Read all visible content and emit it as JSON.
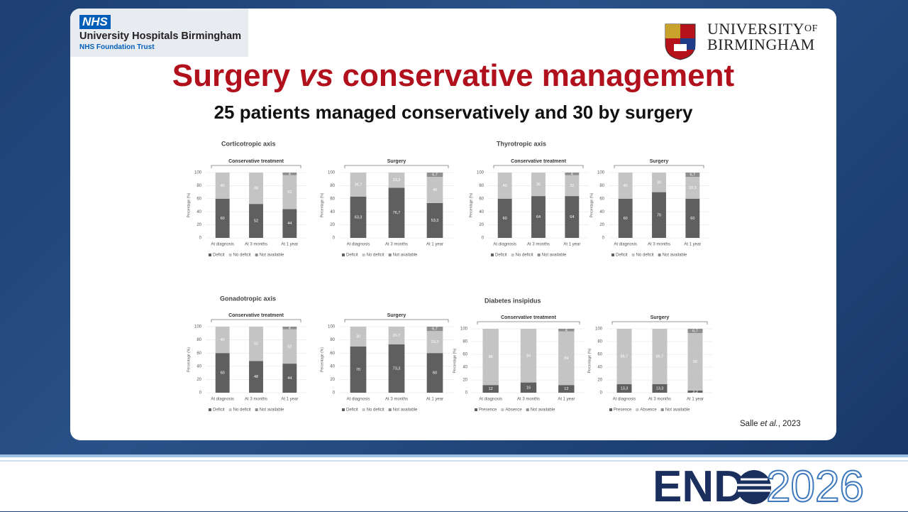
{
  "header": {
    "nhs": "NHS",
    "trust_name": "University Hospitals Birmingham",
    "trust_sub": "NHS Foundation Trust",
    "university": "UNIVERSITY",
    "of": "OF",
    "city": "BIRMINGHAM"
  },
  "slide": {
    "title_parts": [
      "Surgery ",
      "vs",
      " conservative management"
    ],
    "subtitle": "25 patients managed conservatively and 30 by surgery",
    "citation_parts": [
      "Salle ",
      "et al.",
      ", 2023"
    ]
  },
  "footer": {
    "logo_left": "END",
    "logo_right": "2026"
  },
  "chart_data": [
    {
      "type": "bar",
      "stacked": true,
      "group_title": "Corticotropic axis",
      "title": "Conservative treatment",
      "ylabel": "Percentage (%)",
      "categories": [
        "At diagnosis",
        "At 3 months",
        "At 1 year"
      ],
      "ylim": [
        0,
        100
      ],
      "yticks": [
        0,
        20,
        40,
        60,
        80,
        100
      ],
      "series": [
        {
          "name": "Deficit",
          "color": "#5f5f5f",
          "values": [
            60,
            52,
            44
          ]
        },
        {
          "name": "No deficit",
          "color": "#c4c4c4",
          "values": [
            40,
            48,
            52
          ]
        },
        {
          "name": "Not available",
          "color": "#8e8e8e",
          "values": [
            0,
            0,
            4
          ],
          "value_labels": [
            null,
            null,
            "4"
          ]
        }
      ]
    },
    {
      "type": "bar",
      "stacked": true,
      "title": "Surgery",
      "ylabel": "Percentage (%)",
      "categories": [
        "At diagnosis",
        "At 3 months",
        "At 1 year"
      ],
      "ylim": [
        0,
        100
      ],
      "yticks": [
        0,
        20,
        40,
        60,
        80,
        100
      ],
      "series": [
        {
          "name": "Deficit",
          "color": "#5f5f5f",
          "values": [
            63.3,
            76.7,
            53.3
          ],
          "value_labels": [
            "63,3",
            "76,7",
            "53,3"
          ]
        },
        {
          "name": "No deficit",
          "color": "#c4c4c4",
          "values": [
            36.7,
            23.3,
            40
          ],
          "value_labels": [
            "36,7",
            "23,3",
            "40"
          ]
        },
        {
          "name": "Not available",
          "color": "#8e8e8e",
          "values": [
            0,
            0,
            6.7
          ],
          "value_labels": [
            null,
            null,
            "6,7"
          ]
        }
      ]
    },
    {
      "type": "bar",
      "stacked": true,
      "group_title": "Thyrotropic axis",
      "title": "Conservative treatment",
      "ylabel": "Percentage (%)",
      "categories": [
        "At diagnosis",
        "At 3 months",
        "At 1 year"
      ],
      "ylim": [
        0,
        100
      ],
      "yticks": [
        0,
        20,
        40,
        60,
        80,
        100
      ],
      "series": [
        {
          "name": "Deficit",
          "color": "#5f5f5f",
          "values": [
            60,
            64,
            64
          ]
        },
        {
          "name": "No deficit",
          "color": "#c4c4c4",
          "values": [
            40,
            36,
            32
          ]
        },
        {
          "name": "Not available",
          "color": "#8e8e8e",
          "values": [
            0,
            0,
            4
          ],
          "value_labels": [
            null,
            null,
            "4"
          ]
        }
      ]
    },
    {
      "type": "bar",
      "stacked": true,
      "title": "Surgery",
      "ylabel": "Percentage (%)",
      "categories": [
        "At diagnosis",
        "At 3 months",
        "At 1 year"
      ],
      "ylim": [
        0,
        100
      ],
      "yticks": [
        0,
        20,
        40,
        60,
        80,
        100
      ],
      "series": [
        {
          "name": "Deficit",
          "color": "#5f5f5f",
          "values": [
            60,
            70,
            60
          ]
        },
        {
          "name": "No deficit",
          "color": "#c4c4c4",
          "values": [
            40,
            30,
            33.3
          ],
          "value_labels": [
            "40",
            "30",
            "33,3"
          ]
        },
        {
          "name": "Not available",
          "color": "#8e8e8e",
          "values": [
            0,
            0,
            6.7
          ],
          "value_labels": [
            null,
            null,
            "6,7"
          ]
        }
      ]
    },
    {
      "type": "bar",
      "stacked": true,
      "group_title": "Gonadotropic axis",
      "title": "Conservative treatment",
      "ylabel": "Percentage (%)",
      "categories": [
        "At diagnosis",
        "At 3 months",
        "At 1 year"
      ],
      "ylim": [
        0,
        100
      ],
      "yticks": [
        0,
        20,
        40,
        60,
        80,
        100
      ],
      "series": [
        {
          "name": "Deficit",
          "color": "#5f5f5f",
          "values": [
            60,
            48,
            44
          ]
        },
        {
          "name": "No deficit",
          "color": "#c4c4c4",
          "values": [
            40,
            52,
            52
          ]
        },
        {
          "name": "Not available",
          "color": "#8e8e8e",
          "values": [
            0,
            0,
            4
          ],
          "value_labels": [
            null,
            null,
            "4"
          ]
        }
      ]
    },
    {
      "type": "bar",
      "stacked": true,
      "title": "Surgery",
      "ylabel": "Percentage (%)",
      "categories": [
        "At diagnosis",
        "At 3 months",
        "At 1 year"
      ],
      "ylim": [
        0,
        100
      ],
      "yticks": [
        0,
        20,
        40,
        60,
        80,
        100
      ],
      "series": [
        {
          "name": "Deficit",
          "color": "#5f5f5f",
          "values": [
            70,
            73.3,
            60
          ],
          "value_labels": [
            "70",
            "73,3",
            "60"
          ]
        },
        {
          "name": "No deficit",
          "color": "#c4c4c4",
          "values": [
            30,
            26.7,
            33.3
          ],
          "value_labels": [
            "30",
            "26,7",
            "33,3"
          ]
        },
        {
          "name": "Not available",
          "color": "#8e8e8e",
          "values": [
            0,
            0,
            6.7
          ],
          "value_labels": [
            null,
            null,
            "6,7"
          ]
        }
      ]
    },
    {
      "type": "bar",
      "stacked": true,
      "group_title": "Diabetes insipidus",
      "title": "Conservative treatment",
      "ylabel": "Percentage (%)",
      "categories": [
        "At diagnosis",
        "At 3 months",
        "At 1 year"
      ],
      "ylim": [
        0,
        100
      ],
      "yticks": [
        0,
        20,
        40,
        60,
        80,
        100
      ],
      "series": [
        {
          "name": "Presence",
          "color": "#5f5f5f",
          "values": [
            12,
            16,
            12
          ]
        },
        {
          "name": "Absence",
          "color": "#c4c4c4",
          "values": [
            88,
            84,
            84
          ]
        },
        {
          "name": "Not available",
          "color": "#8e8e8e",
          "values": [
            0,
            0,
            4
          ],
          "value_labels": [
            null,
            null,
            "4"
          ]
        }
      ]
    },
    {
      "type": "bar",
      "stacked": true,
      "title": "Surgery",
      "ylabel": "Percentage (%)",
      "categories": [
        "At diagnosis",
        "At 3 months",
        "At 1 year"
      ],
      "ylim": [
        0,
        100
      ],
      "yticks": [
        0,
        20,
        40,
        60,
        80,
        100
      ],
      "series": [
        {
          "name": "Presence",
          "color": "#5f5f5f",
          "values": [
            13.3,
            13.3,
            3.3
          ],
          "value_labels": [
            "13,3",
            "13,3",
            "3,3"
          ]
        },
        {
          "name": "Absence",
          "color": "#c4c4c4",
          "values": [
            86.7,
            86.7,
            90
          ],
          "value_labels": [
            "86,7",
            "86,7",
            "90"
          ]
        },
        {
          "name": "Not available",
          "color": "#8e8e8e",
          "values": [
            0,
            0,
            6.7
          ],
          "value_labels": [
            null,
            null,
            "6,7"
          ]
        }
      ]
    }
  ]
}
